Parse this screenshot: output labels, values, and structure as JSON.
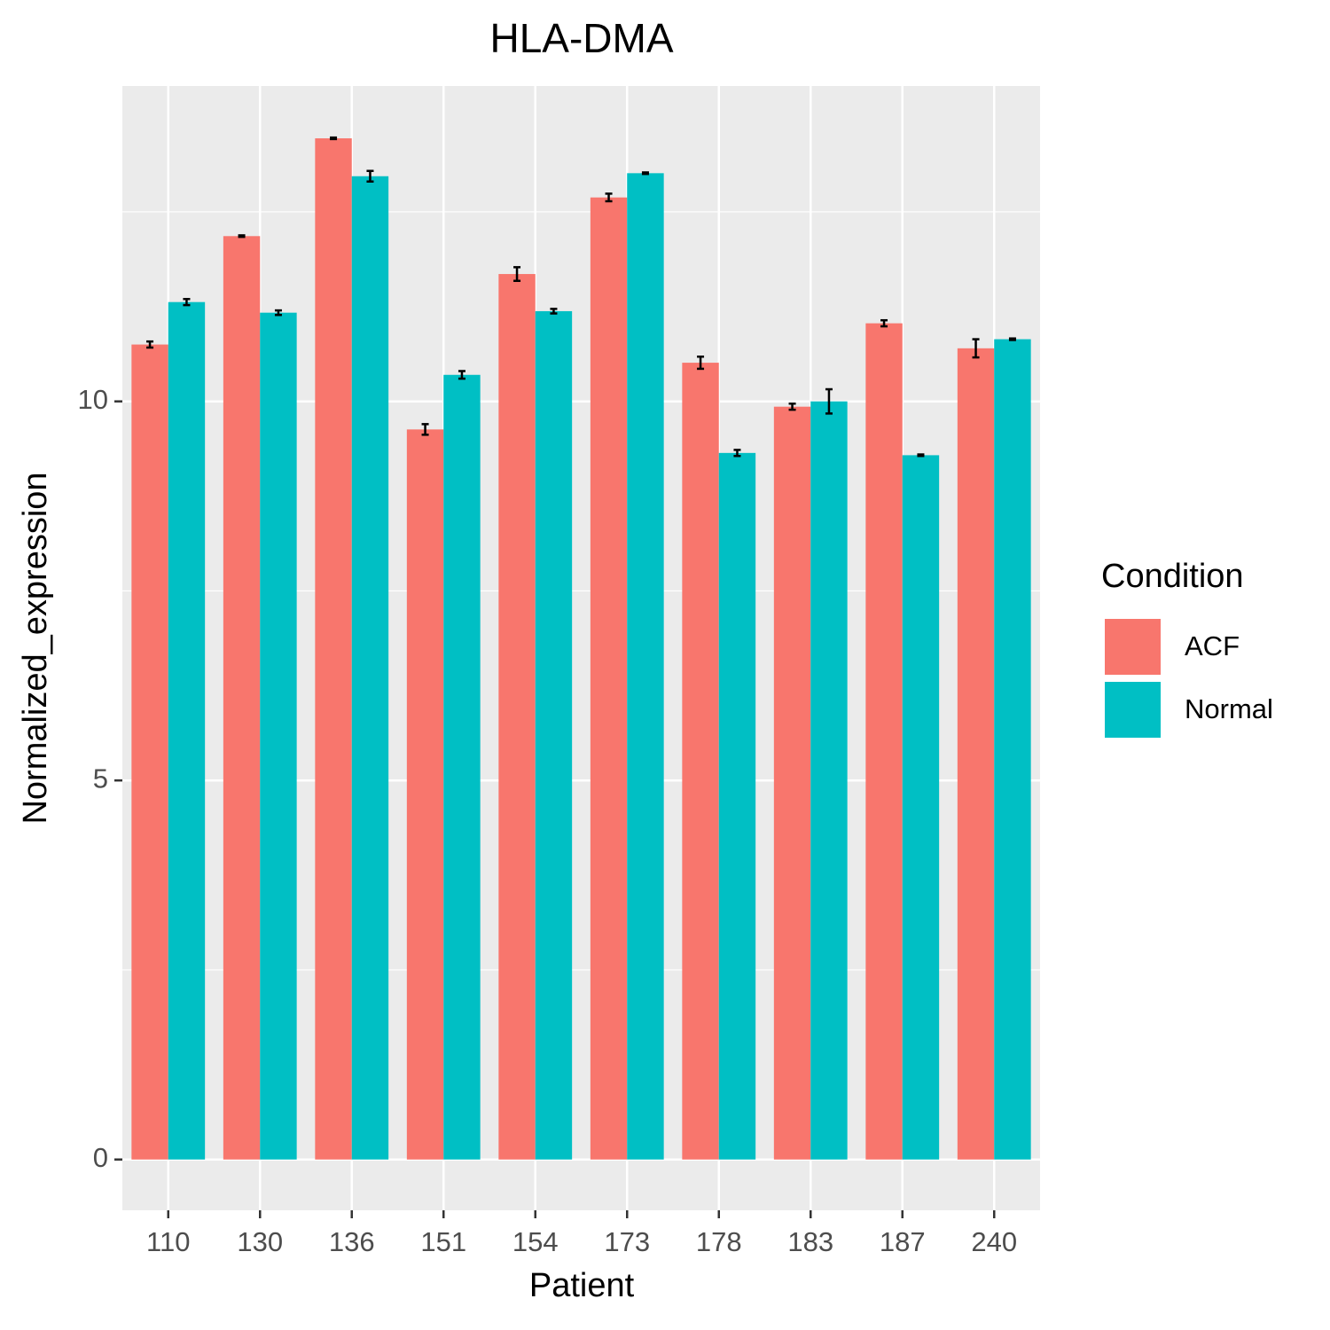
{
  "chart_data": {
    "type": "bar",
    "title": "HLA-DMA",
    "x_label": "Patient",
    "y_label": "Normalized_expression",
    "legend_title": "Condition",
    "legend_position": "right",
    "categories": [
      "110",
      "130",
      "136",
      "151",
      "154",
      "173",
      "178",
      "183",
      "187",
      "240"
    ],
    "series": [
      {
        "name": "ACF",
        "color": "#f8766d",
        "values": [
          10.75,
          12.18,
          13.47,
          9.63,
          11.68,
          12.69,
          10.51,
          9.93,
          11.03,
          10.7
        ],
        "errors": [
          0.04,
          0.01,
          0.01,
          0.07,
          0.09,
          0.05,
          0.08,
          0.04,
          0.04,
          0.12
        ]
      },
      {
        "name": "Normal",
        "color": "#00bfc4",
        "values": [
          11.31,
          11.17,
          12.97,
          10.35,
          11.19,
          13.01,
          9.32,
          10.0,
          9.29,
          10.82
        ],
        "errors": [
          0.04,
          0.03,
          0.07,
          0.05,
          0.03,
          0.01,
          0.04,
          0.16,
          0.01,
          0.01
        ]
      }
    ],
    "ylim": [
      -0.67,
      14.16
    ],
    "yticks": [
      0,
      5,
      10
    ],
    "grid": true
  }
}
